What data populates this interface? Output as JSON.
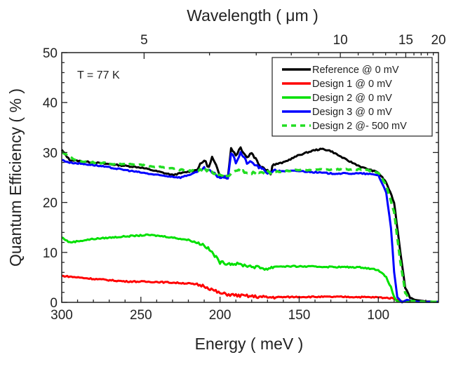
{
  "chart_data": {
    "type": "line",
    "xlabel": "Energy ( meV )",
    "ylabel": "Quantum Efficiency ( % )",
    "top_xlabel": "Wavelength ( μm )",
    "xlim": [
      300,
      62
    ],
    "ylim": [
      0,
      50
    ],
    "x_ticks": [
      300,
      250,
      200,
      150,
      100
    ],
    "y_ticks": [
      0,
      10,
      20,
      30,
      40,
      50
    ],
    "top_ticks_um": [
      5,
      10,
      15,
      20
    ],
    "grid": false,
    "legend_position": "top-right",
    "annotation": "T = 77 K",
    "series": [
      {
        "name": "Reference @ 0 mV",
        "color": "#000000",
        "dash": false,
        "x": [
          300,
          295,
          280,
          250,
          230,
          215,
          210,
          207,
          205,
          200,
          195,
          193,
          190,
          187,
          183,
          180,
          175,
          170,
          168,
          167,
          160,
          150,
          140,
          135,
          130,
          120,
          110,
          100,
          95,
          90,
          86,
          83,
          80,
          77,
          70,
          62
        ],
        "y": [
          30.5,
          28.5,
          28,
          27,
          25.5,
          26.5,
          28.5,
          27,
          29,
          25.5,
          25,
          31,
          29.5,
          31,
          29,
          30,
          27.5,
          26.5,
          25.5,
          27.5,
          28,
          29.5,
          30.5,
          30.7,
          30.3,
          28.5,
          27,
          26,
          24,
          20,
          10,
          3,
          1,
          0.5,
          0.2,
          0.1
        ]
      },
      {
        "name": "Design 1 @ 0 mV",
        "color": "#ff0000",
        "dash": false,
        "x": [
          300,
          280,
          260,
          240,
          220,
          210,
          200,
          190,
          170,
          150,
          120,
          100,
          90,
          85,
          80,
          62
        ],
        "y": [
          5.3,
          4.7,
          4.2,
          4.1,
          3.8,
          3.3,
          1.8,
          1.4,
          1.0,
          1.1,
          1.1,
          1.0,
          0.8,
          0.2,
          0.1,
          0.1
        ]
      },
      {
        "name": "Design 2 @ 0 mV",
        "color": "#00e000",
        "dash": false,
        "x": [
          300,
          295,
          280,
          260,
          245,
          235,
          220,
          210,
          205,
          200,
          195,
          190,
          180,
          170,
          165,
          150,
          130,
          110,
          100,
          95,
          92,
          90,
          88,
          80,
          62
        ],
        "y": [
          13,
          12,
          12.7,
          13.2,
          13.5,
          13.2,
          12.5,
          11.5,
          10,
          8,
          7.8,
          7.7,
          7.2,
          6.7,
          7.2,
          7.2,
          7.1,
          7.0,
          6.5,
          5,
          3,
          1,
          0.2,
          0.1,
          0.1
        ]
      },
      {
        "name": "Design 3 @ 0 mV",
        "color": "#0000ff",
        "dash": false,
        "x": [
          300,
          295,
          280,
          260,
          240,
          225,
          215,
          210,
          205,
          200,
          195,
          193,
          190,
          187,
          183,
          180,
          170,
          167,
          150,
          130,
          110,
          100,
          95,
          92,
          90,
          88,
          85,
          82,
          80,
          75,
          62
        ],
        "y": [
          28.5,
          28,
          27.5,
          26.5,
          25.5,
          25,
          26,
          26.8,
          26,
          25,
          25,
          30,
          28,
          30,
          28,
          28,
          26,
          26.3,
          26.3,
          25.8,
          25.8,
          25.5,
          22,
          15,
          6,
          1,
          0,
          0.5,
          0.4,
          0.1,
          0.1
        ]
      },
      {
        "name": "Design 2 @- 500 mV",
        "color": "#22dd22",
        "dash": true,
        "x": [
          300,
          290,
          270,
          250,
          230,
          220,
          210,
          205,
          200,
          195,
          190,
          180,
          170,
          150,
          130,
          110,
          100,
          95,
          90,
          86,
          83,
          80,
          70,
          62
        ],
        "y": [
          30,
          28.3,
          27.8,
          27.5,
          26.8,
          26.3,
          26.5,
          26,
          25.3,
          25,
          26.5,
          26,
          26,
          26.5,
          26.6,
          26.6,
          26,
          23.5,
          18,
          8,
          2,
          0.3,
          0.1,
          0.1
        ]
      }
    ]
  }
}
